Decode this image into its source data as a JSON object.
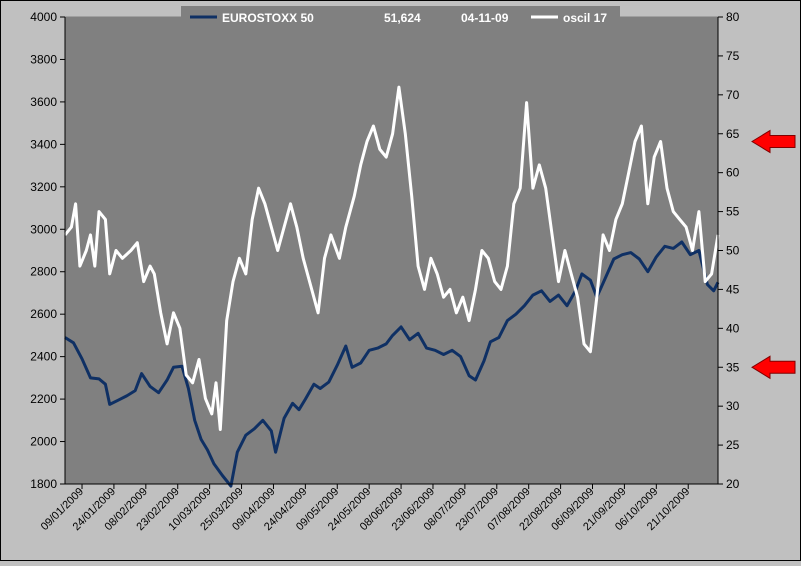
{
  "chart_data": {
    "type": "line",
    "title": "",
    "xlabel": "",
    "ylabel": "",
    "legend": {
      "placement": "top",
      "series1_label": "EUROSTOXX 50",
      "last_value": "51,624",
      "date": "04-11-09",
      "series2_label": "oscil 17"
    },
    "x_ticks": [
      "09/01/2009",
      "24/01/2009",
      "08/02/2009",
      "23/02/2009",
      "10/03/2009",
      "25/03/2009",
      "09/04/2009",
      "24/04/2009",
      "09/05/2009",
      "24/05/2009",
      "08/06/2009",
      "23/06/2009",
      "08/07/2009",
      "23/07/2009",
      "07/08/2009",
      "22/08/2009",
      "06/09/2009",
      "21/09/2009",
      "06/10/2009",
      "21/10/2009"
    ],
    "x_range": [
      "2009-01-01",
      "2009-11-04"
    ],
    "y_left": {
      "min": 1800,
      "max": 4000,
      "ticks": [
        1800,
        2000,
        2200,
        2400,
        2600,
        2800,
        3000,
        3200,
        3400,
        3600,
        3800,
        4000
      ]
    },
    "y_right": {
      "min": 20,
      "max": 80,
      "ticks": [
        20,
        25,
        30,
        35,
        40,
        45,
        50,
        55,
        60,
        65,
        70,
        75,
        80
      ]
    },
    "grid": false,
    "series": [
      {
        "name": "EUROSTOXX 50",
        "axis": "left",
        "color": "#0f3064",
        "points": [
          [
            "2009-01-01",
            2490
          ],
          [
            "2009-01-05",
            2465
          ],
          [
            "2009-01-09",
            2390
          ],
          [
            "2009-01-13",
            2300
          ],
          [
            "2009-01-17",
            2295
          ],
          [
            "2009-01-20",
            2270
          ],
          [
            "2009-01-22",
            2175
          ],
          [
            "2009-01-26",
            2195
          ],
          [
            "2009-01-30",
            2215
          ],
          [
            "2009-02-03",
            2240
          ],
          [
            "2009-02-06",
            2320
          ],
          [
            "2009-02-10",
            2260
          ],
          [
            "2009-02-14",
            2230
          ],
          [
            "2009-02-18",
            2290
          ],
          [
            "2009-02-21",
            2350
          ],
          [
            "2009-02-25",
            2355
          ],
          [
            "2009-02-28",
            2250
          ],
          [
            "2009-03-03",
            2100
          ],
          [
            "2009-03-06",
            2010
          ],
          [
            "2009-03-09",
            1960
          ],
          [
            "2009-03-12",
            1895
          ],
          [
            "2009-03-16",
            1840
          ],
          [
            "2009-03-20",
            1790
          ],
          [
            "2009-03-23",
            1950
          ],
          [
            "2009-03-27",
            2030
          ],
          [
            "2009-03-31",
            2060
          ],
          [
            "2009-04-04",
            2100
          ],
          [
            "2009-04-08",
            2050
          ],
          [
            "2009-04-10",
            1950
          ],
          [
            "2009-04-14",
            2110
          ],
          [
            "2009-04-18",
            2180
          ],
          [
            "2009-04-21",
            2150
          ],
          [
            "2009-04-24",
            2200
          ],
          [
            "2009-04-28",
            2270
          ],
          [
            "2009-05-01",
            2250
          ],
          [
            "2009-05-05",
            2280
          ],
          [
            "2009-05-09",
            2360
          ],
          [
            "2009-05-13",
            2450
          ],
          [
            "2009-05-16",
            2350
          ],
          [
            "2009-05-20",
            2370
          ],
          [
            "2009-05-24",
            2430
          ],
          [
            "2009-05-28",
            2440
          ],
          [
            "2009-06-01",
            2460
          ],
          [
            "2009-06-04",
            2500
          ],
          [
            "2009-06-08",
            2540
          ],
          [
            "2009-06-12",
            2480
          ],
          [
            "2009-06-16",
            2510
          ],
          [
            "2009-06-20",
            2440
          ],
          [
            "2009-06-24",
            2430
          ],
          [
            "2009-06-28",
            2410
          ],
          [
            "2009-07-02",
            2430
          ],
          [
            "2009-07-06",
            2400
          ],
          [
            "2009-07-10",
            2310
          ],
          [
            "2009-07-13",
            2290
          ],
          [
            "2009-07-17",
            2380
          ],
          [
            "2009-07-20",
            2470
          ],
          [
            "2009-07-24",
            2490
          ],
          [
            "2009-07-28",
            2570
          ],
          [
            "2009-08-01",
            2600
          ],
          [
            "2009-08-05",
            2640
          ],
          [
            "2009-08-09",
            2690
          ],
          [
            "2009-08-13",
            2710
          ],
          [
            "2009-08-17",
            2660
          ],
          [
            "2009-08-21",
            2690
          ],
          [
            "2009-08-25",
            2640
          ],
          [
            "2009-08-29",
            2710
          ],
          [
            "2009-09-01",
            2790
          ],
          [
            "2009-09-05",
            2760
          ],
          [
            "2009-09-08",
            2680
          ],
          [
            "2009-09-12",
            2770
          ],
          [
            "2009-09-16",
            2860
          ],
          [
            "2009-09-20",
            2880
          ],
          [
            "2009-09-24",
            2890
          ],
          [
            "2009-09-28",
            2860
          ],
          [
            "2009-10-02",
            2800
          ],
          [
            "2009-10-06",
            2870
          ],
          [
            "2009-10-10",
            2920
          ],
          [
            "2009-10-14",
            2910
          ],
          [
            "2009-10-18",
            2940
          ],
          [
            "2009-10-22",
            2880
          ],
          [
            "2009-10-26",
            2900
          ],
          [
            "2009-10-30",
            2740
          ],
          [
            "2009-11-02",
            2710
          ],
          [
            "2009-11-04",
            2750
          ]
        ]
      },
      {
        "name": "oscil 17",
        "axis": "right",
        "color": "#ffffff",
        "points": [
          [
            "2009-01-01",
            52
          ],
          [
            "2009-01-04",
            53
          ],
          [
            "2009-01-06",
            56
          ],
          [
            "2009-01-08",
            48
          ],
          [
            "2009-01-11",
            50
          ],
          [
            "2009-01-13",
            52
          ],
          [
            "2009-01-15",
            48
          ],
          [
            "2009-01-17",
            55
          ],
          [
            "2009-01-20",
            54
          ],
          [
            "2009-01-22",
            47
          ],
          [
            "2009-01-25",
            50
          ],
          [
            "2009-01-28",
            49
          ],
          [
            "2009-02-01",
            50
          ],
          [
            "2009-02-04",
            51
          ],
          [
            "2009-02-07",
            46
          ],
          [
            "2009-02-10",
            48
          ],
          [
            "2009-02-12",
            47
          ],
          [
            "2009-02-15",
            42
          ],
          [
            "2009-02-18",
            38
          ],
          [
            "2009-02-21",
            42
          ],
          [
            "2009-02-24",
            40
          ],
          [
            "2009-02-27",
            34
          ],
          [
            "2009-03-02",
            33
          ],
          [
            "2009-03-05",
            36
          ],
          [
            "2009-03-08",
            31
          ],
          [
            "2009-03-11",
            29
          ],
          [
            "2009-03-13",
            33
          ],
          [
            "2009-03-15",
            27
          ],
          [
            "2009-03-18",
            41
          ],
          [
            "2009-03-21",
            46
          ],
          [
            "2009-03-24",
            49
          ],
          [
            "2009-03-27",
            47
          ],
          [
            "2009-03-30",
            54
          ],
          [
            "2009-04-02",
            58
          ],
          [
            "2009-04-05",
            56
          ],
          [
            "2009-04-08",
            53
          ],
          [
            "2009-04-11",
            50
          ],
          [
            "2009-04-14",
            53
          ],
          [
            "2009-04-17",
            56
          ],
          [
            "2009-04-20",
            53
          ],
          [
            "2009-04-23",
            49
          ],
          [
            "2009-04-27",
            45
          ],
          [
            "2009-04-30",
            42
          ],
          [
            "2009-05-03",
            49
          ],
          [
            "2009-05-06",
            52
          ],
          [
            "2009-05-10",
            49
          ],
          [
            "2009-05-13",
            53
          ],
          [
            "2009-05-17",
            57
          ],
          [
            "2009-05-20",
            61
          ],
          [
            "2009-05-23",
            64
          ],
          [
            "2009-05-26",
            66
          ],
          [
            "2009-05-29",
            63
          ],
          [
            "2009-06-01",
            62
          ],
          [
            "2009-06-04",
            65
          ],
          [
            "2009-06-07",
            71
          ],
          [
            "2009-06-10",
            65
          ],
          [
            "2009-06-13",
            57
          ],
          [
            "2009-06-16",
            48
          ],
          [
            "2009-06-19",
            45
          ],
          [
            "2009-06-22",
            49
          ],
          [
            "2009-06-25",
            47
          ],
          [
            "2009-06-28",
            44
          ],
          [
            "2009-07-01",
            45
          ],
          [
            "2009-07-04",
            42
          ],
          [
            "2009-07-07",
            44
          ],
          [
            "2009-07-10",
            41
          ],
          [
            "2009-07-13",
            45
          ],
          [
            "2009-07-16",
            50
          ],
          [
            "2009-07-19",
            49
          ],
          [
            "2009-07-22",
            46
          ],
          [
            "2009-07-25",
            45
          ],
          [
            "2009-07-28",
            48
          ],
          [
            "2009-07-31",
            56
          ],
          [
            "2009-08-03",
            58
          ],
          [
            "2009-08-06",
            69
          ],
          [
            "2009-08-09",
            58
          ],
          [
            "2009-08-12",
            61
          ],
          [
            "2009-08-15",
            58
          ],
          [
            "2009-08-18",
            52
          ],
          [
            "2009-08-21",
            46
          ],
          [
            "2009-08-24",
            50
          ],
          [
            "2009-08-27",
            47
          ],
          [
            "2009-08-30",
            44
          ],
          [
            "2009-09-02",
            38
          ],
          [
            "2009-09-05",
            37
          ],
          [
            "2009-09-08",
            44
          ],
          [
            "2009-09-11",
            52
          ],
          [
            "2009-09-14",
            50
          ],
          [
            "2009-09-17",
            54
          ],
          [
            "2009-09-20",
            56
          ],
          [
            "2009-09-23",
            60
          ],
          [
            "2009-09-26",
            64
          ],
          [
            "2009-09-29",
            66
          ],
          [
            "2009-10-02",
            56
          ],
          [
            "2009-10-05",
            62
          ],
          [
            "2009-10-08",
            64
          ],
          [
            "2009-10-11",
            58
          ],
          [
            "2009-10-14",
            55
          ],
          [
            "2009-10-17",
            54
          ],
          [
            "2009-10-20",
            53
          ],
          [
            "2009-10-23",
            50
          ],
          [
            "2009-10-26",
            55
          ],
          [
            "2009-10-29",
            46
          ],
          [
            "2009-11-01",
            47
          ],
          [
            "2009-11-04",
            52
          ]
        ]
      }
    ],
    "annotations": [
      {
        "type": "arrow",
        "axis": "right",
        "value": 64,
        "color": "#ff0000"
      },
      {
        "type": "arrow",
        "axis": "right",
        "value": 35,
        "color": "#ff0000"
      }
    ]
  }
}
